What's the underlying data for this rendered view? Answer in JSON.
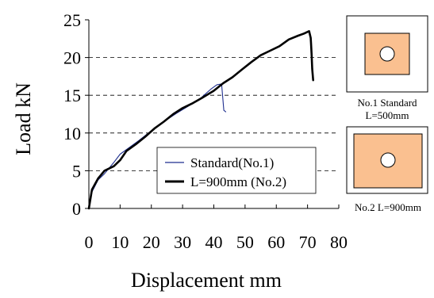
{
  "chart_data": {
    "type": "line",
    "xlabel": "Displacement mm",
    "ylabel": "Load kN",
    "xlim": [
      0,
      80
    ],
    "ylim": [
      0,
      25
    ],
    "xticks": [
      0,
      10,
      20,
      30,
      40,
      50,
      60,
      70,
      80
    ],
    "yticks": [
      0,
      5,
      10,
      15,
      20,
      25
    ],
    "grid": "horizontal dashed at 5, 10, 15, 20",
    "legend_placement": "lower-right inside plot",
    "series": [
      {
        "name": "Standard(No.1)",
        "color": "#1f2f8f",
        "style": "thin solid",
        "points": [
          [
            0,
            0
          ],
          [
            1,
            2.2
          ],
          [
            3,
            3.8
          ],
          [
            5,
            4.6
          ],
          [
            8,
            6.1
          ],
          [
            10,
            7.2
          ],
          [
            13,
            8.1
          ],
          [
            16,
            9.0
          ],
          [
            20,
            10.3
          ],
          [
            24,
            11.5
          ],
          [
            28,
            12.6
          ],
          [
            32,
            13.6
          ],
          [
            36,
            14.7
          ],
          [
            39,
            15.8
          ],
          [
            41,
            16.4
          ],
          [
            42.5,
            16.5
          ],
          [
            43,
            14
          ],
          [
            43.2,
            13.0
          ],
          [
            43.8,
            12.8
          ]
        ]
      },
      {
        "name": "L=900mm (No.2)",
        "color": "#000000",
        "style": "thick solid",
        "points": [
          [
            0,
            0
          ],
          [
            1,
            2.5
          ],
          [
            3,
            4.0
          ],
          [
            5,
            5.0
          ],
          [
            8,
            5.6
          ],
          [
            10,
            6.4
          ],
          [
            12,
            7.6
          ],
          [
            15,
            8.5
          ],
          [
            18,
            9.5
          ],
          [
            21,
            10.6
          ],
          [
            24,
            11.5
          ],
          [
            27,
            12.5
          ],
          [
            30,
            13.3
          ],
          [
            33,
            13.9
          ],
          [
            36,
            14.6
          ],
          [
            40,
            15.6
          ],
          [
            43,
            16.6
          ],
          [
            46,
            17.4
          ],
          [
            49,
            18.4
          ],
          [
            52,
            19.4
          ],
          [
            55,
            20.3
          ],
          [
            58,
            20.9
          ],
          [
            61,
            21.5
          ],
          [
            64,
            22.4
          ],
          [
            67,
            22.9
          ],
          [
            69,
            23.2
          ],
          [
            70.5,
            23.5
          ],
          [
            71,
            22.6
          ],
          [
            71.1,
            21.9
          ],
          [
            71.3,
            20.5
          ],
          [
            71.5,
            18.5
          ],
          [
            71.8,
            17.0
          ]
        ]
      }
    ]
  },
  "insets": [
    {
      "caption": [
        "No.1 Standard",
        "L=500mm"
      ],
      "fill": "#fac090"
    },
    {
      "caption": [
        "No.2 L=900mm"
      ],
      "fill": "#fac090"
    }
  ]
}
